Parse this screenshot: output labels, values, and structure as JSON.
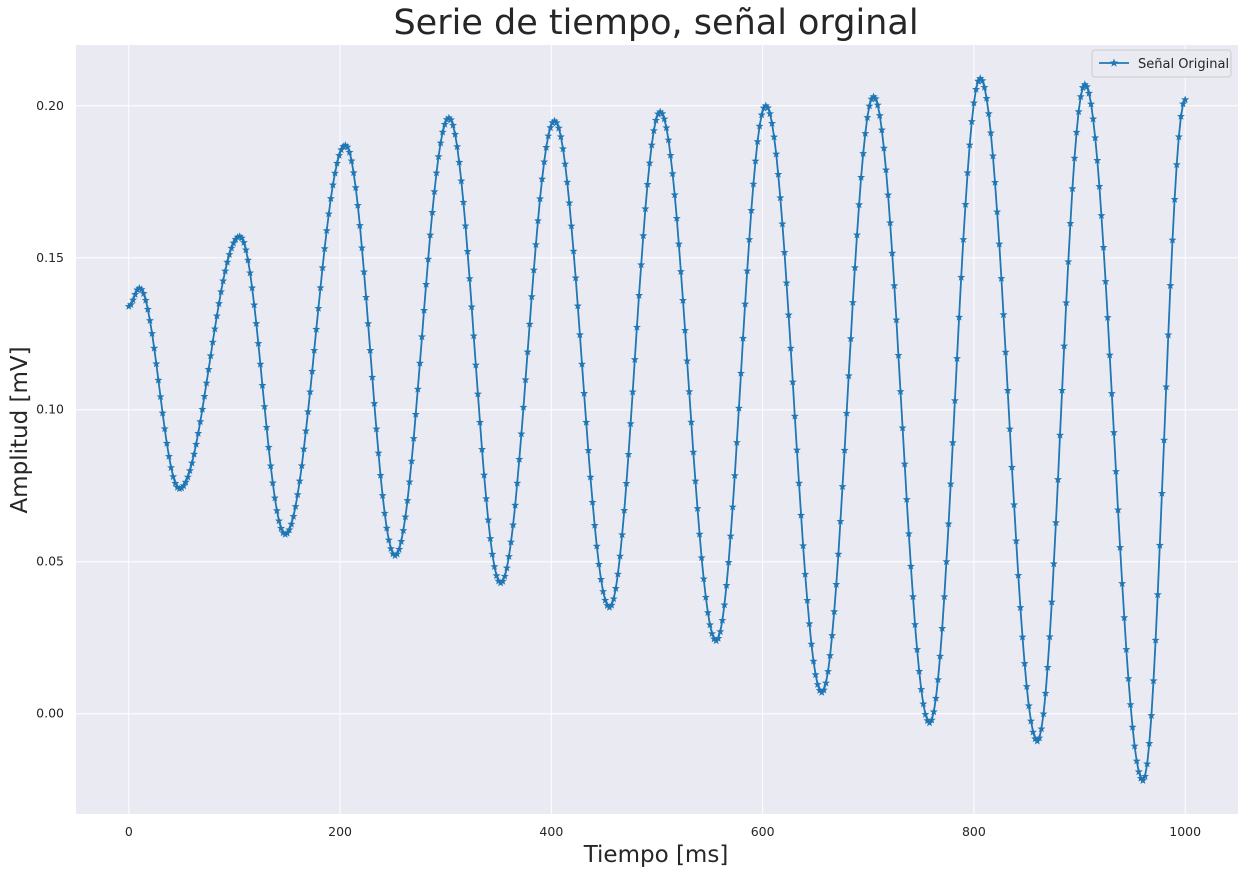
{
  "chart_data": {
    "type": "line",
    "title": "Serie de tiempo, señal orginal",
    "xlabel": "Tiempo [ms]",
    "ylabel": "Amplitud [mV]",
    "xlim": [
      -50,
      1050
    ],
    "ylim": [
      -0.033,
      0.22
    ],
    "x_ticks": [
      0,
      200,
      400,
      600,
      800,
      1000
    ],
    "x_tick_labels": [
      "0",
      "200",
      "400",
      "600",
      "800",
      "1000"
    ],
    "y_ticks": [
      0.0,
      0.05,
      0.1,
      0.15,
      0.2
    ],
    "y_tick_labels": [
      "0.00",
      "0.05",
      "0.10",
      "0.15",
      "0.20"
    ],
    "grid": true,
    "legend_position": "top-right",
    "marker": "star",
    "colors": {
      "line": "#1f77b4",
      "plot_background": "#eaeaf2",
      "grid": "#ffffff"
    },
    "series": [
      {
        "name": "Señal Original",
        "x": [
          0,
          10,
          48,
          105,
          148,
          205,
          252,
          303,
          352,
          403,
          455,
          503,
          556,
          603,
          656,
          705,
          758,
          806,
          860,
          905,
          960,
          1000
        ],
        "values": [
          0.134,
          0.14,
          0.074,
          0.157,
          0.059,
          0.187,
          0.052,
          0.196,
          0.043,
          0.195,
          0.035,
          0.198,
          0.024,
          0.2,
          0.007,
          0.203,
          -0.003,
          0.209,
          -0.009,
          0.207,
          -0.022,
          0.202
        ]
      }
    ]
  }
}
